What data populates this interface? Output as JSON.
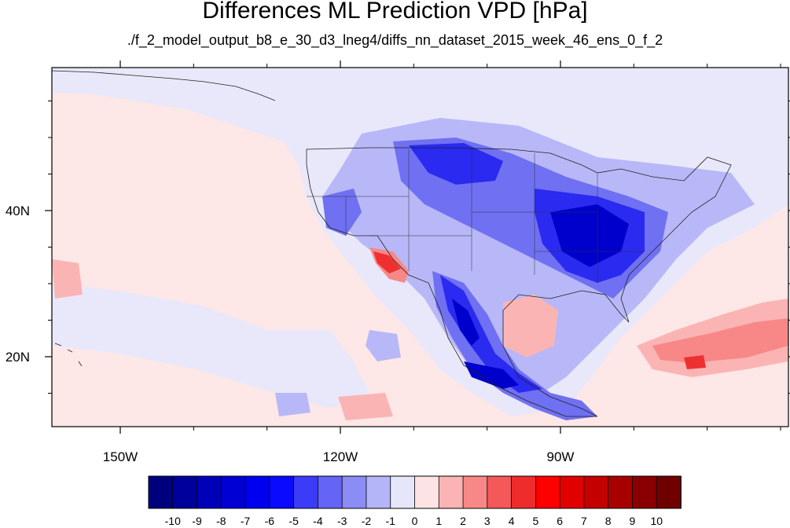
{
  "title": "Differences ML Prediction VPD [hPa]",
  "subtitle": "./f_2_model_output_b8_e_30_d3_lneg4/diffs_nn_dataset_2015_week_46_ens_0_f_2",
  "axes": {
    "x_ticks": [
      {
        "label": "150W",
        "value": -150
      },
      {
        "label": "120W",
        "value": -120
      },
      {
        "label": "90W",
        "value": -90
      }
    ],
    "y_ticks": [
      {
        "label": "40N",
        "value": 40
      },
      {
        "label": "20N",
        "value": 20
      }
    ]
  },
  "colorbar": {
    "labels": [
      "-10",
      "-9",
      "-8",
      "-7",
      "-6",
      "-5",
      "-4",
      "-3",
      "-2",
      "-1",
      "0",
      "1",
      "2",
      "3",
      "4",
      "5",
      "6",
      "7",
      "8",
      "9",
      "10"
    ],
    "colors": [
      "#00007f",
      "#00009c",
      "#0000b8",
      "#0000d4",
      "#0000ef",
      "#0a0aff",
      "#3c3cf8",
      "#6464f6",
      "#8c8cf6",
      "#b4b4f8",
      "#e6e6fa",
      "#fde3e3",
      "#fbb4b4",
      "#f88888",
      "#f45858",
      "#ef2c2c",
      "#ff0000",
      "#e00000",
      "#c40000",
      "#a80000",
      "#8a0000",
      "#700000"
    ]
  },
  "map_colors": {
    "ocean": "#fde7e7",
    "land_neutral": "#e8e8fa",
    "light_blue": "#b8b8f8",
    "mid_blue": "#7070f2",
    "strong_blue": "#2a2af0",
    "deep_blue": "#0000cc",
    "light_red": "#fbb4b4",
    "mid_red": "#f88888",
    "strong_red": "#ef3030"
  }
}
